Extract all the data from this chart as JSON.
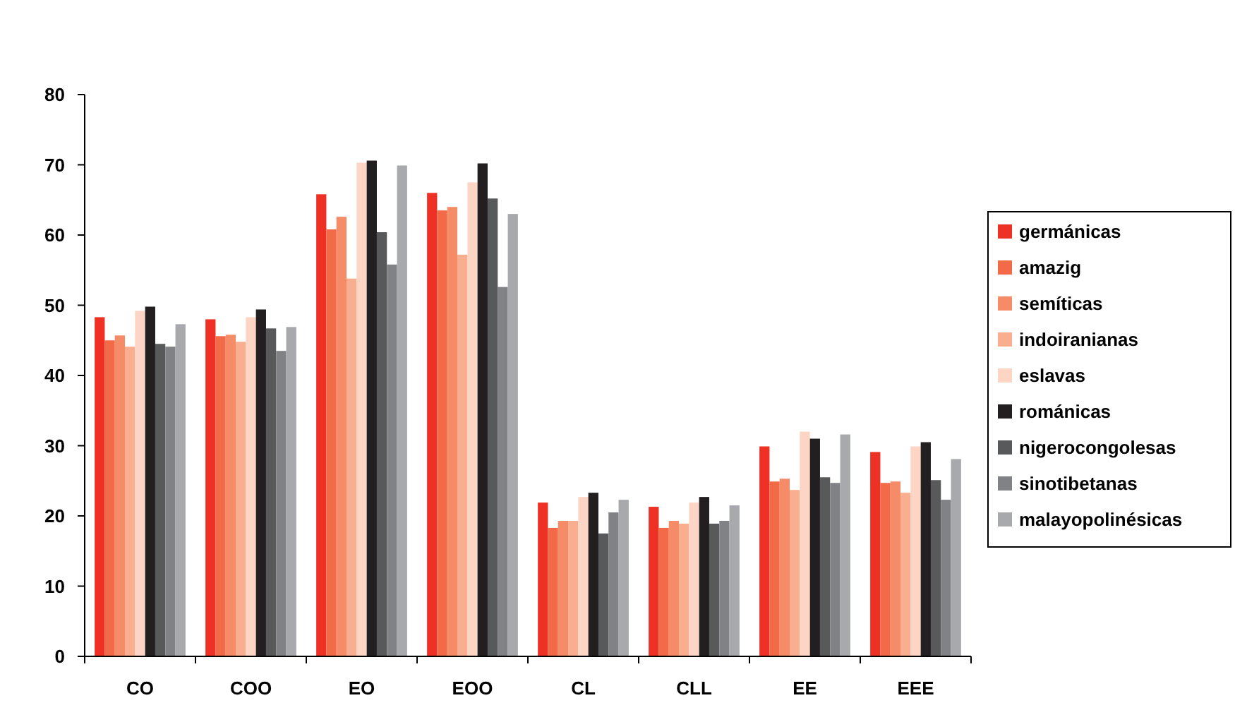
{
  "chart_data": {
    "type": "bar",
    "categories": [
      "CO",
      "COO",
      "EO",
      "EOO",
      "CL",
      "CLL",
      "EE",
      "EEE"
    ],
    "series": [
      {
        "name": "germánicas",
        "color": "#ee3124",
        "values": [
          48.3,
          48,
          65.8,
          66,
          21.9,
          21.3,
          29.9,
          29.1
        ]
      },
      {
        "name": "amazig",
        "color": "#f26a48",
        "values": [
          45,
          45.6,
          60.8,
          63.5,
          18.3,
          18.3,
          24.9,
          24.7
        ]
      },
      {
        "name": "semíticas",
        "color": "#f58b67",
        "values": [
          45.7,
          45.8,
          62.6,
          64,
          19.3,
          19.3,
          25.3,
          24.9
        ]
      },
      {
        "name": "indoiranianas",
        "color": "#f9ae90",
        "values": [
          44.1,
          44.8,
          53.8,
          57.2,
          19.3,
          18.9,
          23.7,
          23.3
        ]
      },
      {
        "name": "eslavas",
        "color": "#fdd5c4",
        "values": [
          49.2,
          48.3,
          70.3,
          67.5,
          22.7,
          21.9,
          32,
          29.9
        ]
      },
      {
        "name": "románicas",
        "color": "#231f20",
        "values": [
          49.8,
          49.4,
          70.6,
          70.2,
          23.3,
          22.7,
          31,
          30.5
        ]
      },
      {
        "name": "nigerocongolesas",
        "color": "#58595b",
        "values": [
          44.5,
          46.7,
          60.4,
          65.2,
          17.5,
          18.9,
          25.5,
          25.1
        ]
      },
      {
        "name": "sinotibetanas",
        "color": "#808285",
        "values": [
          44.1,
          43.5,
          55.8,
          52.6,
          20.5,
          19.3,
          24.7,
          22.3
        ]
      },
      {
        "name": "malayopolinésicas",
        "color": "#a7a9ac",
        "values": [
          47.3,
          46.9,
          69.9,
          63,
          22.3,
          21.5,
          31.6,
          28.1
        ]
      }
    ],
    "ylim": [
      0,
      80
    ],
    "yticks": [
      0,
      10,
      20,
      30,
      40,
      50,
      60,
      70,
      80
    ],
    "grid": false,
    "legend": "right"
  }
}
